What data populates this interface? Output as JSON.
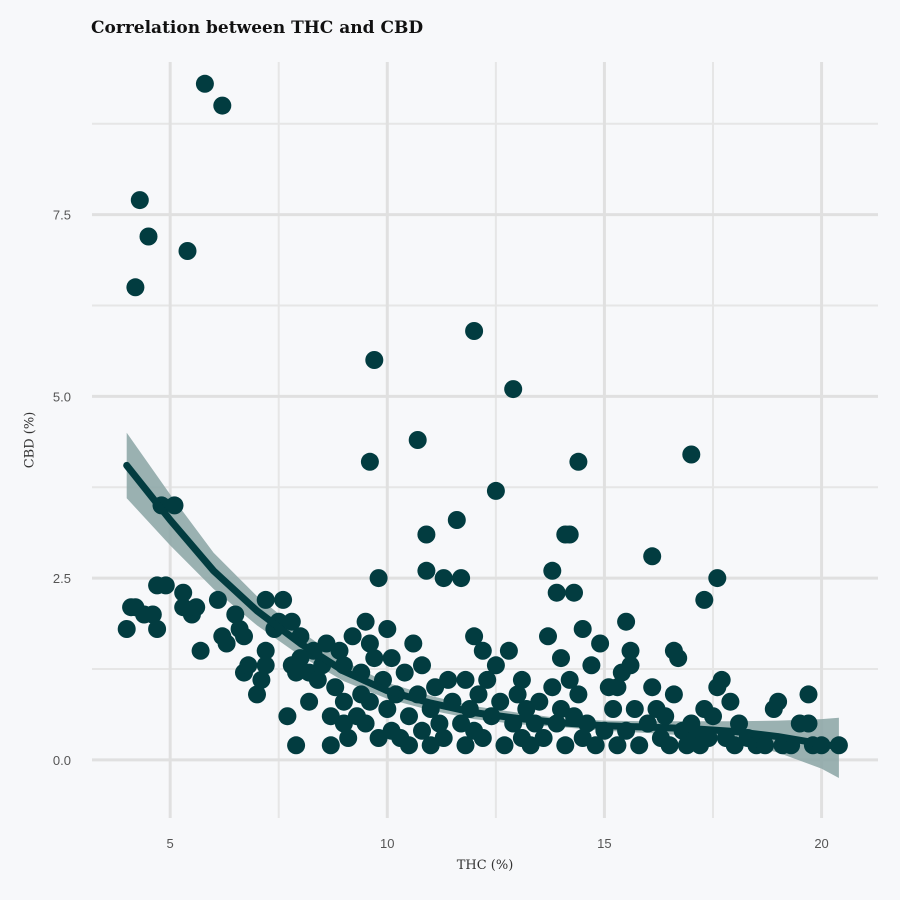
{
  "chart_data": {
    "type": "scatter",
    "title": "Correlation between THC and CBD",
    "xlabel": "THC (%)",
    "ylabel": "CBD (%)",
    "xlim": [
      3.2,
      21.3
    ],
    "ylim": [
      -0.8,
      9.6
    ],
    "xticks": [
      5,
      10,
      15,
      20
    ],
    "yticks": [
      0.0,
      2.5,
      5.0,
      7.5
    ],
    "ytick_labels": [
      "0.0",
      "2.5",
      "5.0",
      "7.5"
    ],
    "grid": true,
    "point_color": "#023c40",
    "fit_color": "#023c40",
    "band_color": "#8fa9a8",
    "points": [
      [
        4.0,
        1.8
      ],
      [
        4.1,
        2.1
      ],
      [
        4.2,
        2.1
      ],
      [
        4.2,
        6.5
      ],
      [
        4.3,
        7.7
      ],
      [
        4.4,
        2.0
      ],
      [
        4.5,
        7.2
      ],
      [
        4.6,
        2.0
      ],
      [
        4.7,
        2.4
      ],
      [
        4.7,
        1.8
      ],
      [
        4.8,
        3.5
      ],
      [
        4.9,
        2.4
      ],
      [
        5.1,
        3.5
      ],
      [
        5.3,
        2.3
      ],
      [
        5.3,
        2.1
      ],
      [
        5.4,
        7.0
      ],
      [
        5.5,
        2.0
      ],
      [
        5.6,
        2.1
      ],
      [
        5.7,
        1.5
      ],
      [
        5.8,
        9.3
      ],
      [
        6.1,
        2.2
      ],
      [
        6.2,
        9.0
      ],
      [
        6.2,
        1.7
      ],
      [
        6.3,
        1.6
      ],
      [
        6.5,
        2.0
      ],
      [
        6.6,
        1.8
      ],
      [
        6.7,
        1.7
      ],
      [
        6.7,
        1.2
      ],
      [
        6.8,
        1.3
      ],
      [
        7.0,
        0.9
      ],
      [
        7.1,
        1.1
      ],
      [
        7.2,
        1.3
      ],
      [
        7.2,
        1.5
      ],
      [
        7.2,
        2.2
      ],
      [
        7.4,
        1.8
      ],
      [
        7.5,
        1.9
      ],
      [
        7.6,
        2.2
      ],
      [
        7.7,
        0.6
      ],
      [
        7.8,
        1.3
      ],
      [
        7.8,
        1.9
      ],
      [
        7.9,
        0.2
      ],
      [
        7.9,
        1.2
      ],
      [
        8.0,
        1.4
      ],
      [
        8.0,
        1.7
      ],
      [
        8.2,
        1.2
      ],
      [
        8.2,
        0.8
      ],
      [
        8.3,
        1.5
      ],
      [
        8.4,
        1.1
      ],
      [
        8.5,
        1.3
      ],
      [
        8.6,
        1.6
      ],
      [
        8.7,
        0.6
      ],
      [
        8.7,
        0.2
      ],
      [
        8.8,
        1.0
      ],
      [
        8.9,
        1.5
      ],
      [
        9.0,
        0.8
      ],
      [
        9.0,
        0.5
      ],
      [
        9.0,
        1.3
      ],
      [
        9.1,
        0.3
      ],
      [
        9.2,
        1.7
      ],
      [
        9.3,
        0.6
      ],
      [
        9.4,
        1.2
      ],
      [
        9.4,
        0.9
      ],
      [
        9.5,
        1.9
      ],
      [
        9.5,
        0.5
      ],
      [
        9.6,
        4.1
      ],
      [
        9.6,
        1.6
      ],
      [
        9.6,
        0.8
      ],
      [
        9.7,
        5.5
      ],
      [
        9.7,
        1.4
      ],
      [
        9.8,
        2.5
      ],
      [
        9.8,
        0.3
      ],
      [
        9.9,
        1.1
      ],
      [
        10.0,
        1.8
      ],
      [
        10.0,
        0.7
      ],
      [
        10.1,
        0.4
      ],
      [
        10.1,
        1.4
      ],
      [
        10.2,
        0.9
      ],
      [
        10.3,
        0.3
      ],
      [
        10.4,
        1.2
      ],
      [
        10.5,
        0.6
      ],
      [
        10.5,
        0.2
      ],
      [
        10.6,
        1.6
      ],
      [
        10.7,
        0.9
      ],
      [
        10.7,
        4.4
      ],
      [
        10.8,
        0.4
      ],
      [
        10.8,
        1.3
      ],
      [
        10.9,
        3.1
      ],
      [
        10.9,
        2.6
      ],
      [
        11.0,
        0.7
      ],
      [
        11.0,
        0.2
      ],
      [
        11.1,
        1.0
      ],
      [
        11.2,
        0.5
      ],
      [
        11.3,
        2.5
      ],
      [
        11.3,
        0.3
      ],
      [
        11.4,
        1.1
      ],
      [
        11.5,
        0.8
      ],
      [
        11.6,
        3.3
      ],
      [
        11.7,
        0.5
      ],
      [
        11.7,
        2.5
      ],
      [
        11.8,
        1.1
      ],
      [
        11.8,
        0.2
      ],
      [
        11.9,
        0.7
      ],
      [
        12.0,
        5.9
      ],
      [
        12.0,
        1.7
      ],
      [
        12.0,
        0.4
      ],
      [
        12.1,
        0.9
      ],
      [
        12.2,
        1.5
      ],
      [
        12.2,
        0.3
      ],
      [
        12.3,
        1.1
      ],
      [
        12.4,
        0.6
      ],
      [
        12.5,
        3.7
      ],
      [
        12.5,
        1.3
      ],
      [
        12.6,
        0.8
      ],
      [
        12.7,
        0.2
      ],
      [
        12.8,
        1.5
      ],
      [
        12.9,
        5.1
      ],
      [
        12.9,
        0.5
      ],
      [
        13.0,
        0.9
      ],
      [
        13.1,
        1.1
      ],
      [
        13.1,
        0.3
      ],
      [
        13.2,
        0.7
      ],
      [
        13.3,
        0.2
      ],
      [
        13.4,
        0.5
      ],
      [
        13.5,
        0.8
      ],
      [
        13.6,
        0.3
      ],
      [
        13.7,
        1.7
      ],
      [
        13.8,
        2.6
      ],
      [
        13.8,
        1.0
      ],
      [
        13.9,
        2.3
      ],
      [
        13.9,
        0.5
      ],
      [
        14.0,
        1.4
      ],
      [
        14.0,
        0.7
      ],
      [
        14.1,
        3.1
      ],
      [
        14.1,
        0.2
      ],
      [
        14.2,
        3.1
      ],
      [
        14.2,
        1.1
      ],
      [
        14.3,
        2.3
      ],
      [
        14.3,
        0.6
      ],
      [
        14.4,
        4.1
      ],
      [
        14.4,
        0.9
      ],
      [
        14.5,
        1.8
      ],
      [
        14.5,
        0.3
      ],
      [
        14.6,
        0.5
      ],
      [
        14.7,
        1.3
      ],
      [
        14.8,
        0.2
      ],
      [
        14.9,
        1.6
      ],
      [
        15.0,
        0.4
      ],
      [
        15.1,
        1.0
      ],
      [
        15.2,
        0.7
      ],
      [
        15.3,
        1.0
      ],
      [
        15.3,
        0.2
      ],
      [
        15.4,
        1.2
      ],
      [
        15.5,
        0.4
      ],
      [
        15.5,
        1.9
      ],
      [
        15.6,
        1.3
      ],
      [
        15.6,
        1.5
      ],
      [
        15.7,
        0.7
      ],
      [
        15.8,
        0.2
      ],
      [
        16.0,
        0.5
      ],
      [
        16.1,
        2.8
      ],
      [
        16.1,
        1.0
      ],
      [
        16.2,
        0.7
      ],
      [
        16.3,
        0.3
      ],
      [
        16.4,
        0.6
      ],
      [
        16.5,
        0.2
      ],
      [
        16.6,
        1.5
      ],
      [
        16.6,
        0.9
      ],
      [
        16.7,
        1.4
      ],
      [
        16.8,
        0.4
      ],
      [
        16.9,
        0.2
      ],
      [
        17.0,
        4.2
      ],
      [
        17.0,
        0.5
      ],
      [
        17.1,
        0.3
      ],
      [
        17.2,
        0.2
      ],
      [
        17.3,
        2.2
      ],
      [
        17.3,
        0.7
      ],
      [
        17.4,
        0.3
      ],
      [
        17.5,
        0.6
      ],
      [
        17.6,
        2.5
      ],
      [
        17.6,
        1.0
      ],
      [
        17.7,
        1.1
      ],
      [
        17.8,
        0.3
      ],
      [
        17.9,
        0.8
      ],
      [
        18.0,
        0.2
      ],
      [
        18.1,
        0.5
      ],
      [
        18.3,
        0.3
      ],
      [
        18.5,
        0.2
      ],
      [
        18.7,
        0.2
      ],
      [
        18.9,
        0.7
      ],
      [
        19.0,
        0.8
      ],
      [
        19.1,
        0.2
      ],
      [
        19.3,
        0.2
      ],
      [
        19.5,
        0.5
      ],
      [
        19.7,
        0.5
      ],
      [
        19.7,
        0.9
      ],
      [
        19.8,
        0.2
      ],
      [
        20.0,
        0.2
      ],
      [
        20.4,
        0.2
      ]
    ],
    "fit": {
      "x": [
        4.0,
        5.0,
        6.0,
        7.0,
        8.0,
        9.0,
        10.0,
        11.0,
        12.0,
        13.0,
        14.0,
        15.0,
        16.0,
        17.0,
        18.0,
        19.0,
        20.0,
        20.4
      ],
      "y": [
        4.05,
        3.3,
        2.6,
        2.05,
        1.6,
        1.22,
        0.95,
        0.78,
        0.65,
        0.57,
        0.51,
        0.47,
        0.45,
        0.43,
        0.39,
        0.32,
        0.22,
        0.18
      ],
      "lower": [
        3.6,
        2.95,
        2.35,
        1.85,
        1.43,
        1.08,
        0.84,
        0.68,
        0.56,
        0.49,
        0.45,
        0.4,
        0.37,
        0.33,
        0.25,
        0.1,
        -0.12,
        -0.25
      ],
      "upper": [
        4.5,
        3.65,
        2.85,
        2.25,
        1.77,
        1.36,
        1.06,
        0.88,
        0.74,
        0.65,
        0.57,
        0.54,
        0.53,
        0.53,
        0.53,
        0.54,
        0.56,
        0.58
      ]
    }
  }
}
